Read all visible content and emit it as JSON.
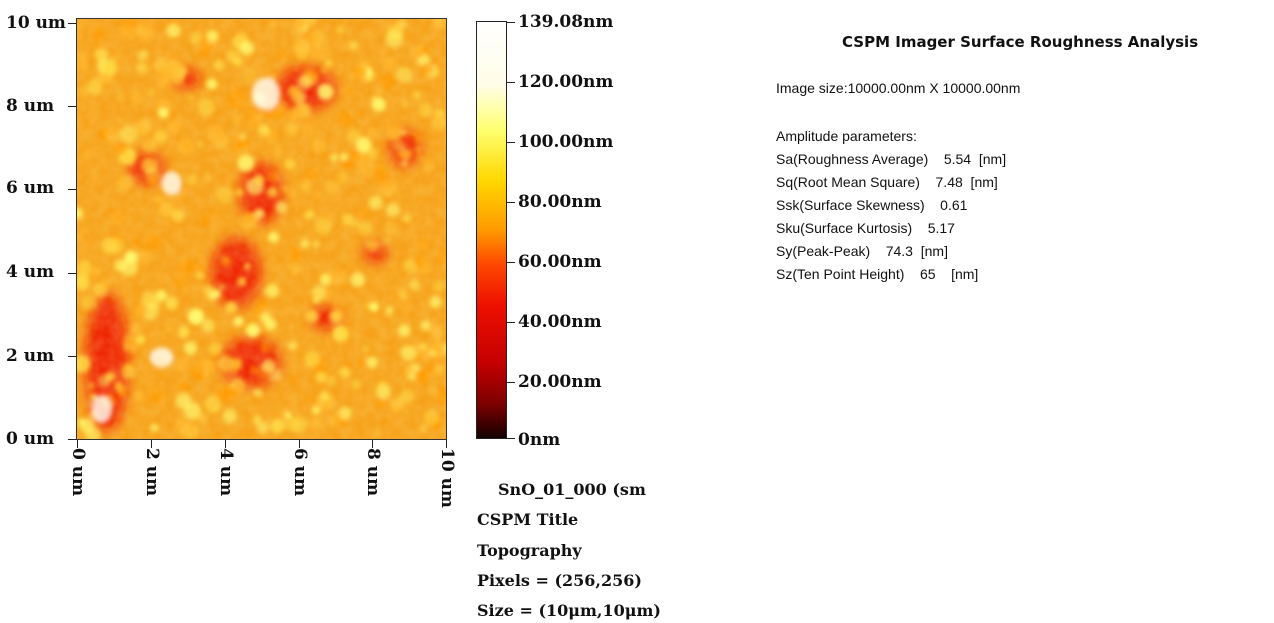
{
  "image_panel": {
    "y_ticks": [
      "10 um",
      "8 um",
      "6 um",
      "4 um",
      "2 um",
      "0 um"
    ],
    "x_ticks": [
      "0 um",
      "2 um",
      "4 um",
      "6 um",
      "8 um",
      "10 um"
    ],
    "colors": {
      "low": "#140000",
      "mid_red": "#ee1000",
      "orange": "#ff9a00",
      "yellow": "#ffff70",
      "high": "#ffffff"
    }
  },
  "colorbar": {
    "labels": [
      "139.08nm",
      "120.00nm",
      "100.00nm",
      "80.00nm",
      "60.00nm",
      "40.00nm",
      "20.00nm",
      "0nm"
    ],
    "max_nm": 139.08,
    "min_nm": 0
  },
  "file_info": {
    "filename": "SnO_01_000 (sm",
    "title": "CSPM Title",
    "mode": "Topography",
    "pixels": "Pixels = (256,256)",
    "size": "Size = (10μm,10μm)"
  },
  "report": {
    "title": "CSPM Imager Surface Roughness Analysis",
    "image_size": "Image size:10000.00nm X 10000.00nm",
    "section_label": "Amplitude parameters:",
    "params": [
      "Sa(Roughness Average)    5.54  [nm]",
      "Sq(Root Mean Square)    7.48  [nm]",
      "Ssk(Surface Skewness)    0.61",
      "Sku(Surface Kurtosis)    5.17",
      "Sy(Peak-Peak)    74.3  [nm]",
      "Sz(Ten Point Height)    65    [nm]"
    ]
  }
}
